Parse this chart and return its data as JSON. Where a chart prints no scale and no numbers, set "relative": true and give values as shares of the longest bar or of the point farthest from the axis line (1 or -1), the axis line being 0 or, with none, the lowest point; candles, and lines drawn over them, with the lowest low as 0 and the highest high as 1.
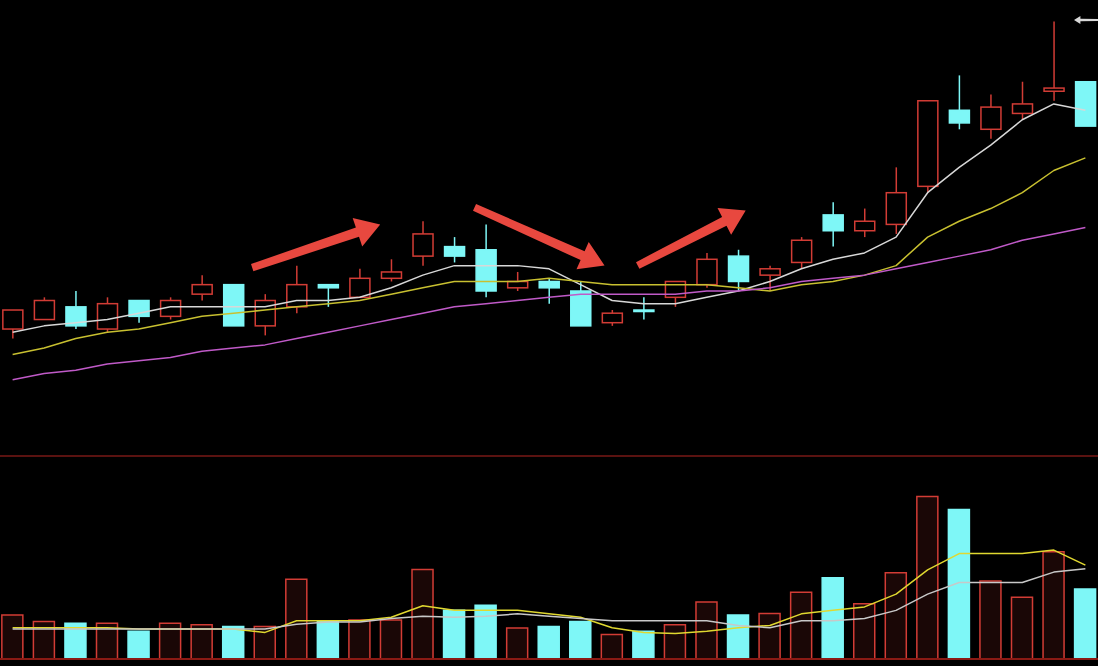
{
  "chart_data": [
    {
      "type": "candlestick",
      "relative": true,
      "categories": [
        null,
        null,
        null,
        null,
        null,
        null,
        null,
        null,
        null,
        null,
        null,
        null,
        null,
        null,
        null,
        null,
        null,
        null,
        null,
        null,
        null,
        null,
        null,
        null,
        null,
        null,
        null,
        null,
        null,
        null,
        null,
        null,
        null,
        null,
        null
      ],
      "ohlc": [
        [
          0.03,
          0.09,
          0,
          0.09
        ],
        [
          0.06,
          0.13,
          0.06,
          0.12
        ],
        [
          0.1,
          0.15,
          0.03,
          0.04
        ],
        [
          0.03,
          0.13,
          0.02,
          0.11
        ],
        [
          0.12,
          0.12,
          0.05,
          0.07
        ],
        [
          0.07,
          0.13,
          0.06,
          0.12
        ],
        [
          0.14,
          0.2,
          0.12,
          0.17
        ],
        [
          0.17,
          0.17,
          0.04,
          0.04
        ],
        [
          0.04,
          0.14,
          0.01,
          0.12
        ],
        [
          0.1,
          0.23,
          0.08,
          0.17
        ],
        [
          0.17,
          0.17,
          0.1,
          0.16
        ],
        [
          0.13,
          0.22,
          0.13,
          0.19
        ],
        [
          0.19,
          0.25,
          0.18,
          0.21
        ],
        [
          0.26,
          0.37,
          0.23,
          0.33
        ],
        [
          0.29,
          0.32,
          0.24,
          0.26
        ],
        [
          0.28,
          0.36,
          0.13,
          0.15
        ],
        [
          0.16,
          0.21,
          0.15,
          0.18
        ],
        [
          0.18,
          0.19,
          0.11,
          0.16
        ],
        [
          0.15,
          0.18,
          0.04,
          0.04
        ],
        [
          0.05,
          0.09,
          0.04,
          0.08
        ],
        [
          0.09,
          0.13,
          0.06,
          0.09
        ],
        [
          0.13,
          0.18,
          0.1,
          0.18
        ],
        [
          0.17,
          0.27,
          0.16,
          0.25
        ],
        [
          0.26,
          0.28,
          0.15,
          0.18
        ],
        [
          0.2,
          0.23,
          0.15,
          0.22
        ],
        [
          0.24,
          0.32,
          0.22,
          0.31
        ],
        [
          0.39,
          0.43,
          0.29,
          0.34
        ],
        [
          0.34,
          0.41,
          0.32,
          0.37
        ],
        [
          0.36,
          0.54,
          0.33,
          0.46
        ],
        [
          0.48,
          0.75,
          0.46,
          0.75
        ],
        [
          0.72,
          0.83,
          0.66,
          0.68
        ],
        [
          0.66,
          0.77,
          0.63,
          0.73
        ],
        [
          0.71,
          0.81,
          0.69,
          0.74
        ],
        [
          0.78,
          1,
          0.75,
          0.79
        ],
        [
          0.81,
          0.81,
          0.67,
          0.67
        ]
      ],
      "colors": [
        "#d23c35",
        "#d23c35",
        "#7ef7f7",
        "#d23c35",
        "#7ef7f7",
        "#d23c35",
        "#d23c35",
        "#7ef7f7",
        "#d23c35",
        "#d23c35",
        "#7ef7f7",
        "#d23c35",
        "#d23c35",
        "#d23c35",
        "#7ef7f7",
        "#7ef7f7",
        "#d23c35",
        "#7ef7f7",
        "#7ef7f7",
        "#d23c35",
        "#7ef7f7",
        "#d23c35",
        "#d23c35",
        "#7ef7f7",
        "#d23c35",
        "#d23c35",
        "#7ef7f7",
        "#d23c35",
        "#d23c35",
        "#d23c35",
        "#7ef7f7",
        "#d23c35",
        "#d23c35",
        "#d23c35",
        "#7ef7f7"
      ],
      "series": [
        {
          "type": "line",
          "color": "#d8d8d8",
          "values": [
            0.02,
            0.04,
            0.05,
            0.06,
            0.08,
            0.1,
            0.1,
            0.1,
            0.1,
            0.12,
            0.12,
            0.13,
            0.16,
            0.2,
            0.23,
            0.23,
            0.23,
            0.22,
            0.17,
            0.12,
            0.11,
            0.11,
            0.13,
            0.15,
            0.18,
            0.22,
            0.25,
            0.27,
            0.32,
            0.46,
            0.54,
            0.61,
            0.69,
            0.74,
            0.72
          ]
        },
        {
          "type": "line",
          "color": "#c8c030",
          "values": [
            -0.05,
            -0.03,
            0.0,
            0.02,
            0.03,
            0.05,
            0.07,
            0.08,
            0.09,
            0.1,
            0.11,
            0.12,
            0.14,
            0.16,
            0.18,
            0.18,
            0.18,
            0.19,
            0.18,
            0.17,
            0.17,
            0.17,
            0.17,
            0.16,
            0.15,
            0.17,
            0.18,
            0.2,
            0.23,
            0.32,
            0.37,
            0.41,
            0.46,
            0.53,
            0.57
          ]
        },
        {
          "type": "line",
          "color": "#c05ac8",
          "values": [
            -0.13,
            -0.11,
            -0.1,
            -0.08,
            -0.07,
            -0.06,
            -0.04,
            -0.03,
            -0.02,
            0.0,
            0.02,
            0.04,
            0.06,
            0.08,
            0.1,
            0.11,
            0.12,
            0.13,
            0.14,
            0.14,
            0.14,
            0.14,
            0.15,
            0.15,
            0.16,
            0.18,
            0.19,
            0.2,
            0.22,
            0.24,
            0.26,
            0.28,
            0.31,
            0.33,
            0.35
          ]
        }
      ]
    },
    {
      "type": "bar",
      "relative": true,
      "categories": [
        null,
        null,
        null,
        null,
        null,
        null,
        null,
        null,
        null,
        null,
        null,
        null,
        null,
        null,
        null,
        null,
        null,
        null,
        null,
        null,
        null,
        null,
        null,
        null,
        null,
        null,
        null,
        null,
        null,
        null,
        null,
        null,
        null,
        null,
        null
      ],
      "colors": [
        "#d23c35",
        "#d23c35",
        "#7ef7f7",
        "#d23c35",
        "#7ef7f7",
        "#d23c35",
        "#d23c35",
        "#7ef7f7",
        "#d23c35",
        "#d23c35",
        "#7ef7f7",
        "#d23c35",
        "#d23c35",
        "#d23c35",
        "#7ef7f7",
        "#7ef7f7",
        "#d23c35",
        "#7ef7f7",
        "#7ef7f7",
        "#d23c35",
        "#7ef7f7",
        "#d23c35",
        "#d23c35",
        "#7ef7f7",
        "#d23c35",
        "#d23c35",
        "#7ef7f7",
        "#d23c35",
        "#d23c35",
        "#d23c35",
        "#7ef7f7",
        "#d23c35",
        "#d23c35",
        "#d23c35",
        "#7ef7f7"
      ],
      "values": [
        0.27,
        0.23,
        0.22,
        0.22,
        0.17,
        0.22,
        0.21,
        0.2,
        0.2,
        0.49,
        0.23,
        0.24,
        0.24,
        0.55,
        0.3,
        0.33,
        0.19,
        0.2,
        0.23,
        0.15,
        0.17,
        0.21,
        0.35,
        0.27,
        0.28,
        0.41,
        0.5,
        0.34,
        0.53,
        1,
        0.92,
        0.48,
        0.38,
        0.66,
        0.43
      ]
    },
    {
      "type": "line",
      "relative": true,
      "categories": [
        null,
        null,
        null,
        null,
        null,
        null,
        null,
        null,
        null,
        null,
        null,
        null,
        null,
        null,
        null,
        null,
        null,
        null,
        null,
        null,
        null,
        null,
        null,
        null,
        null,
        null,
        null,
        null,
        null,
        null,
        null,
        null,
        null,
        null,
        null
      ],
      "series": [
        {
          "color": "#e0d830",
          "values": [
            0.33,
            0.33,
            0.33,
            0.33,
            0.32,
            0.32,
            0.32,
            0.32,
            0.29,
            0.39,
            0.39,
            0.39,
            0.42,
            0.52,
            0.48,
            0.48,
            0.48,
            0.45,
            0.42,
            0.33,
            0.29,
            0.28,
            0.3,
            0.33,
            0.35,
            0.45,
            0.48,
            0.51,
            0.62,
            0.83,
            0.97,
            0.97,
            0.97,
            1,
            0.87
          ]
        },
        {
          "color": "#c8c8c8",
          "values": [
            0.32,
            0.32,
            0.32,
            0.32,
            0.32,
            0.32,
            0.32,
            0.32,
            0.32,
            0.36,
            0.38,
            0.38,
            0.41,
            0.43,
            0.42,
            0.43,
            0.45,
            0.43,
            0.41,
            0.39,
            0.39,
            0.39,
            0.39,
            0.35,
            0.33,
            0.39,
            0.39,
            0.41,
            0.48,
            0.62,
            0.72,
            0.72,
            0.72,
            0.81,
            0.84
          ]
        }
      ]
    }
  ]
}
